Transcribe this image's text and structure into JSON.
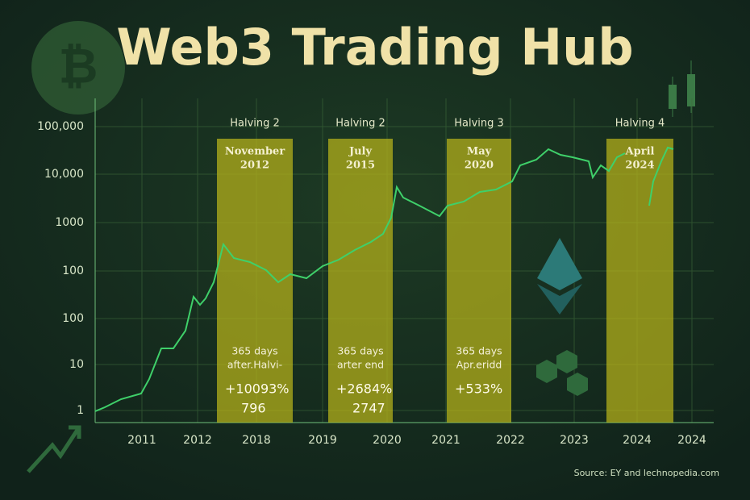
{
  "title": "Web3 Trading Hub",
  "axis": {
    "y_labels": [
      "100,000",
      "10,000",
      "1000",
      "100",
      "100",
      "10",
      "1"
    ],
    "x_labels": [
      "2011",
      "2012",
      "2018",
      "2019",
      "2020",
      "2021",
      "2022",
      "2023",
      "2024",
      "2024"
    ]
  },
  "halvings": [
    {
      "label": "Halving 2",
      "date": [
        "November",
        "2012"
      ],
      "note": [
        "365 days",
        "after.Halvi-"
      ],
      "change": "+10093%",
      "value": "796"
    },
    {
      "label": "Halving 2",
      "date": [
        "July",
        "2015"
      ],
      "note": [
        "365 days",
        "arter end"
      ],
      "change": "+2684%",
      "value": "2747"
    },
    {
      "label": "Halving 3",
      "date": [
        "May",
        "2020"
      ],
      "note": [
        "365 days",
        "Apr.eridd"
      ],
      "change": "+533%"
    },
    {
      "label": "Halving 4",
      "date": [
        "April",
        "2024"
      ]
    }
  ],
  "source": "Source: EY and lechnopedia.com"
}
